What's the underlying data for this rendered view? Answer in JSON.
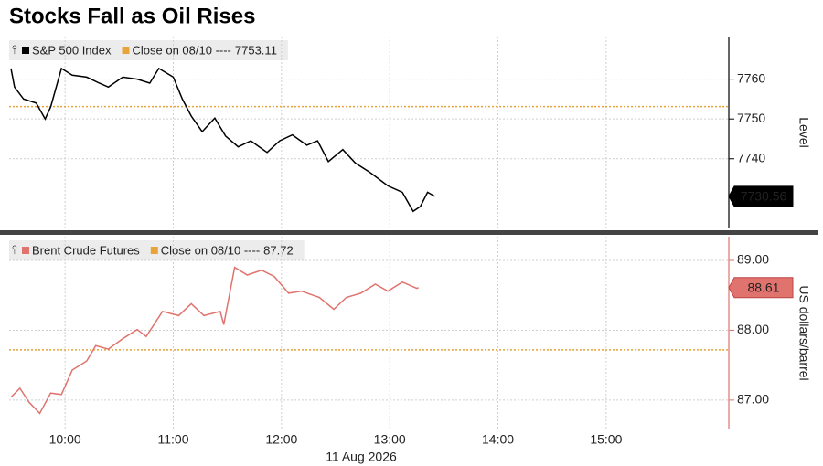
{
  "title": "Stocks Fall as Oil Rises",
  "chart_data": [
    {
      "type": "line",
      "ylabel": "Level",
      "xlabel": "11 Aug 2026",
      "xlim": [
        "09:29",
        "16:08"
      ],
      "ylim": [
        7722.5,
        7770.7
      ],
      "yticks": [
        7740,
        7750,
        7760
      ],
      "grid": true,
      "legend": "top-left",
      "last_value_tag": true,
      "x": [
        "09:30",
        "09:32",
        "09:37",
        "09:44",
        "09:49",
        "09:52",
        "09:58",
        "10:04",
        "10:12",
        "10:19",
        "10:24",
        "10:32",
        "10:40",
        "10:47",
        "10:52",
        "11:00",
        "11:05",
        "11:10",
        "11:16",
        "11:23",
        "11:29",
        "11:36",
        "11:43",
        "11:52",
        "11:59",
        "12:06",
        "12:14",
        "12:20",
        "12:26",
        "12:34",
        "12:41",
        "12:49",
        "12:59",
        "13:07",
        "13:13",
        "13:17",
        "13:21",
        "13:25"
      ],
      "series": [
        {
          "name": "S&P 500 Index",
          "color": "#000000",
          "values": [
            7762.7,
            7758,
            7755,
            7754,
            7750,
            7753,
            7762.7,
            7761,
            7760.5,
            7759,
            7758,
            7760.5,
            7760,
            7759,
            7762.7,
            7760.5,
            7755,
            7750.7,
            7746.8,
            7750.2,
            7745.7,
            7743,
            7744.5,
            7741.6,
            7744.5,
            7746,
            7743.4,
            7744.5,
            7739.3,
            7742.3,
            7738.9,
            7736.6,
            7733.2,
            7731.6,
            7726.8,
            7728,
            7731.6,
            7730.56
          ]
        }
      ],
      "reference": {
        "name": "Close on 08/10 ----",
        "value": 7753.11,
        "color": "#e8a33a"
      }
    },
    {
      "type": "line",
      "ylabel": "US dollars/barrel",
      "xlim": [
        "09:29",
        "16:08"
      ],
      "xticks": [
        "10:00",
        "11:00",
        "12:00",
        "13:00",
        "14:00",
        "15:00"
      ],
      "ylim": [
        86.58,
        89.34
      ],
      "yticks": [
        {
          "value": 87,
          "label": "87.00"
        },
        {
          "value": 88,
          "label": "88.00"
        },
        {
          "value": 89,
          "label": "89.00"
        }
      ],
      "grid": true,
      "legend": "top-left",
      "last_value_tag": true,
      "x": [
        "09:30",
        "09:35",
        "09:40",
        "09:46",
        "09:52",
        "09:58",
        "10:04",
        "10:12",
        "10:17",
        "10:24",
        "10:32",
        "10:40",
        "10:45",
        "10:54",
        "11:03",
        "11:10",
        "11:17",
        "11:26",
        "11:28",
        "11:34",
        "11:41",
        "11:49",
        "11:56",
        "12:04",
        "12:11",
        "12:21",
        "12:29",
        "12:36",
        "12:44",
        "12:52",
        "12:59",
        "13:07",
        "13:15",
        "13:16"
      ],
      "series": [
        {
          "name": "Brent Crude Futures",
          "color": "#e0736e",
          "values": [
            87.04,
            87.17,
            86.97,
            86.81,
            87.1,
            87.08,
            87.43,
            87.56,
            87.78,
            87.73,
            87.88,
            88.01,
            87.91,
            88.27,
            88.21,
            88.38,
            88.21,
            88.27,
            88.08,
            88.9,
            88.79,
            88.86,
            88.77,
            88.53,
            88.56,
            88.47,
            88.3,
            88.47,
            88.53,
            88.66,
            88.56,
            88.69,
            88.6,
            88.61
          ]
        }
      ],
      "reference": {
        "name": "Close on 08/10 ----",
        "value": 87.72,
        "color": "#e8a33a"
      }
    }
  ]
}
